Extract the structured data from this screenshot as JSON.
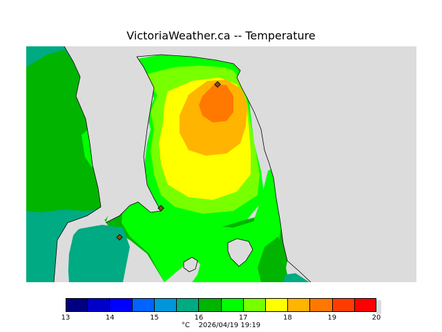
{
  "title": "VictoriaWeather.ca -- Temperature",
  "map": {
    "land_color": "#dcdcdc",
    "stations": [
      {
        "name": "station-north",
        "label": ""
      },
      {
        "name": "station-middle",
        "label": ""
      },
      {
        "name": "station-south-west",
        "label": ""
      }
    ]
  },
  "legend": {
    "colors": [
      "#000080",
      "#0000c8",
      "#0000ff",
      "#0064ff",
      "#0096dc",
      "#00aa82",
      "#00b400",
      "#00ff00",
      "#78ff00",
      "#ffff00",
      "#ffb400",
      "#ff7800",
      "#ff3c00",
      "#ff0000"
    ],
    "ticks": [
      {
        "value": 13,
        "label": "13"
      },
      {
        "value": 14,
        "label": "14"
      },
      {
        "value": 15,
        "label": "15"
      },
      {
        "value": 16,
        "label": "16"
      },
      {
        "value": 17,
        "label": "17"
      },
      {
        "value": 18,
        "label": "18"
      },
      {
        "value": 19,
        "label": "19"
      },
      {
        "value": 20,
        "label": "20"
      }
    ],
    "min": 13,
    "max": 20
  },
  "footer": {
    "unit": "°C",
    "timestamp": "2026/04/19 19:19"
  }
}
